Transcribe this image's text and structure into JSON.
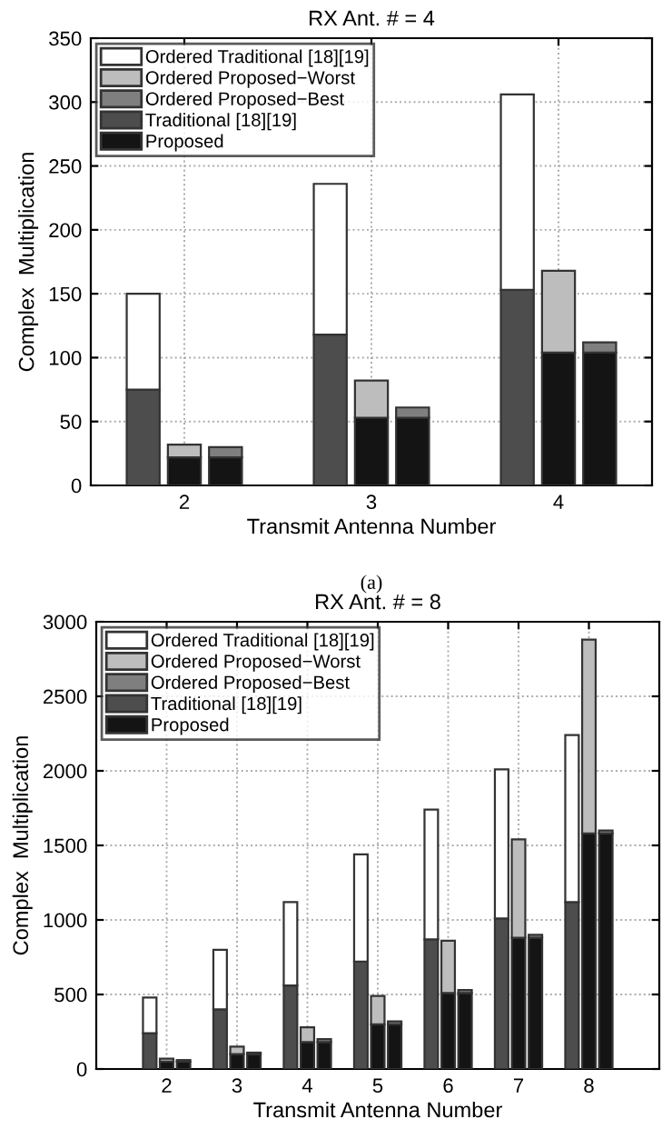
{
  "chart_data": [
    {
      "type": "bar",
      "stacked": true,
      "title": "RX Ant. # = 4",
      "xlabel": "Transmit Antenna Number",
      "ylabel": "Complex  Multiplication",
      "xlim": [
        1.5,
        4.5
      ],
      "xticks": [
        2,
        3,
        4
      ],
      "ylim": [
        0,
        350
      ],
      "yticks": [
        0,
        50,
        100,
        150,
        200,
        250,
        300,
        350
      ],
      "grid": true,
      "legend": "top left",
      "annotations": [
        "(a)"
      ],
      "x": [
        1.78,
        2,
        2.22,
        2.78,
        3,
        3.22,
        3.78,
        4,
        4.22
      ],
      "series": [
        {
          "name": "Traditional [18][19]",
          "color": "#4d4d4d",
          "values": [
            75,
            null,
            null,
            118,
            null,
            null,
            153,
            null,
            null
          ]
        },
        {
          "name": "Proposed",
          "color": "#141414",
          "values": [
            null,
            22,
            22,
            null,
            53,
            53,
            null,
            104,
            104
          ]
        },
        {
          "name": "Ordered Traditional [18][19]",
          "color": "#ffffff",
          "values": [
            75,
            null,
            null,
            118,
            null,
            null,
            153,
            null,
            null
          ]
        },
        {
          "name": "Ordered Proposed−Worst",
          "color": "#bdbdbd",
          "values": [
            null,
            10,
            null,
            null,
            29,
            null,
            null,
            64,
            null
          ]
        },
        {
          "name": "Ordered Proposed−Best",
          "color": "#7f7f7f",
          "values": [
            null,
            null,
            8,
            null,
            null,
            8,
            null,
            null,
            8
          ]
        }
      ]
    },
    {
      "type": "bar",
      "stacked": true,
      "title": "RX Ant. # = 8",
      "xlabel": "Transmit Antenna Number",
      "ylabel": "Complex  Multiplication",
      "xlim": [
        1,
        9
      ],
      "xticks": [
        2,
        3,
        4,
        5,
        6,
        7,
        8
      ],
      "ylim": [
        0,
        3000
      ],
      "yticks": [
        0,
        500,
        1000,
        1500,
        2000,
        2500,
        3000
      ],
      "grid": true,
      "legend": "top left",
      "x": [
        1.76,
        2,
        2.24,
        2.76,
        3,
        3.24,
        3.76,
        4,
        4.24,
        4.76,
        5,
        5.24,
        5.76,
        6,
        6.24,
        6.76,
        7,
        7.24,
        7.76,
        8,
        8.24
      ],
      "series": [
        {
          "name": "Traditional [18][19]",
          "color": "#4d4d4d",
          "values": [
            240,
            null,
            null,
            400,
            null,
            null,
            560,
            null,
            null,
            720,
            null,
            null,
            870,
            null,
            null,
            1010,
            null,
            null,
            1120,
            null,
            null
          ]
        },
        {
          "name": "Proposed",
          "color": "#141414",
          "values": [
            null,
            50,
            50,
            null,
            100,
            100,
            null,
            180,
            180,
            null,
            300,
            300,
            null,
            510,
            510,
            null,
            880,
            880,
            null,
            1580,
            1580
          ]
        },
        {
          "name": "Ordered Traditional [18][19]",
          "color": "#ffffff",
          "values": [
            240,
            null,
            null,
            400,
            null,
            null,
            560,
            null,
            null,
            720,
            null,
            null,
            870,
            null,
            null,
            1000,
            null,
            null,
            1120,
            null,
            null
          ]
        },
        {
          "name": "Ordered Proposed−Worst",
          "color": "#bdbdbd",
          "values": [
            null,
            20,
            null,
            null,
            50,
            null,
            null,
            100,
            null,
            null,
            190,
            null,
            null,
            350,
            null,
            null,
            660,
            null,
            null,
            1300,
            null
          ]
        },
        {
          "name": "Ordered Proposed−Best",
          "color": "#7f7f7f",
          "values": [
            null,
            null,
            10,
            null,
            null,
            10,
            null,
            null,
            20,
            null,
            null,
            20,
            null,
            null,
            20,
            null,
            null,
            20,
            null,
            null,
            20
          ]
        }
      ]
    }
  ]
}
